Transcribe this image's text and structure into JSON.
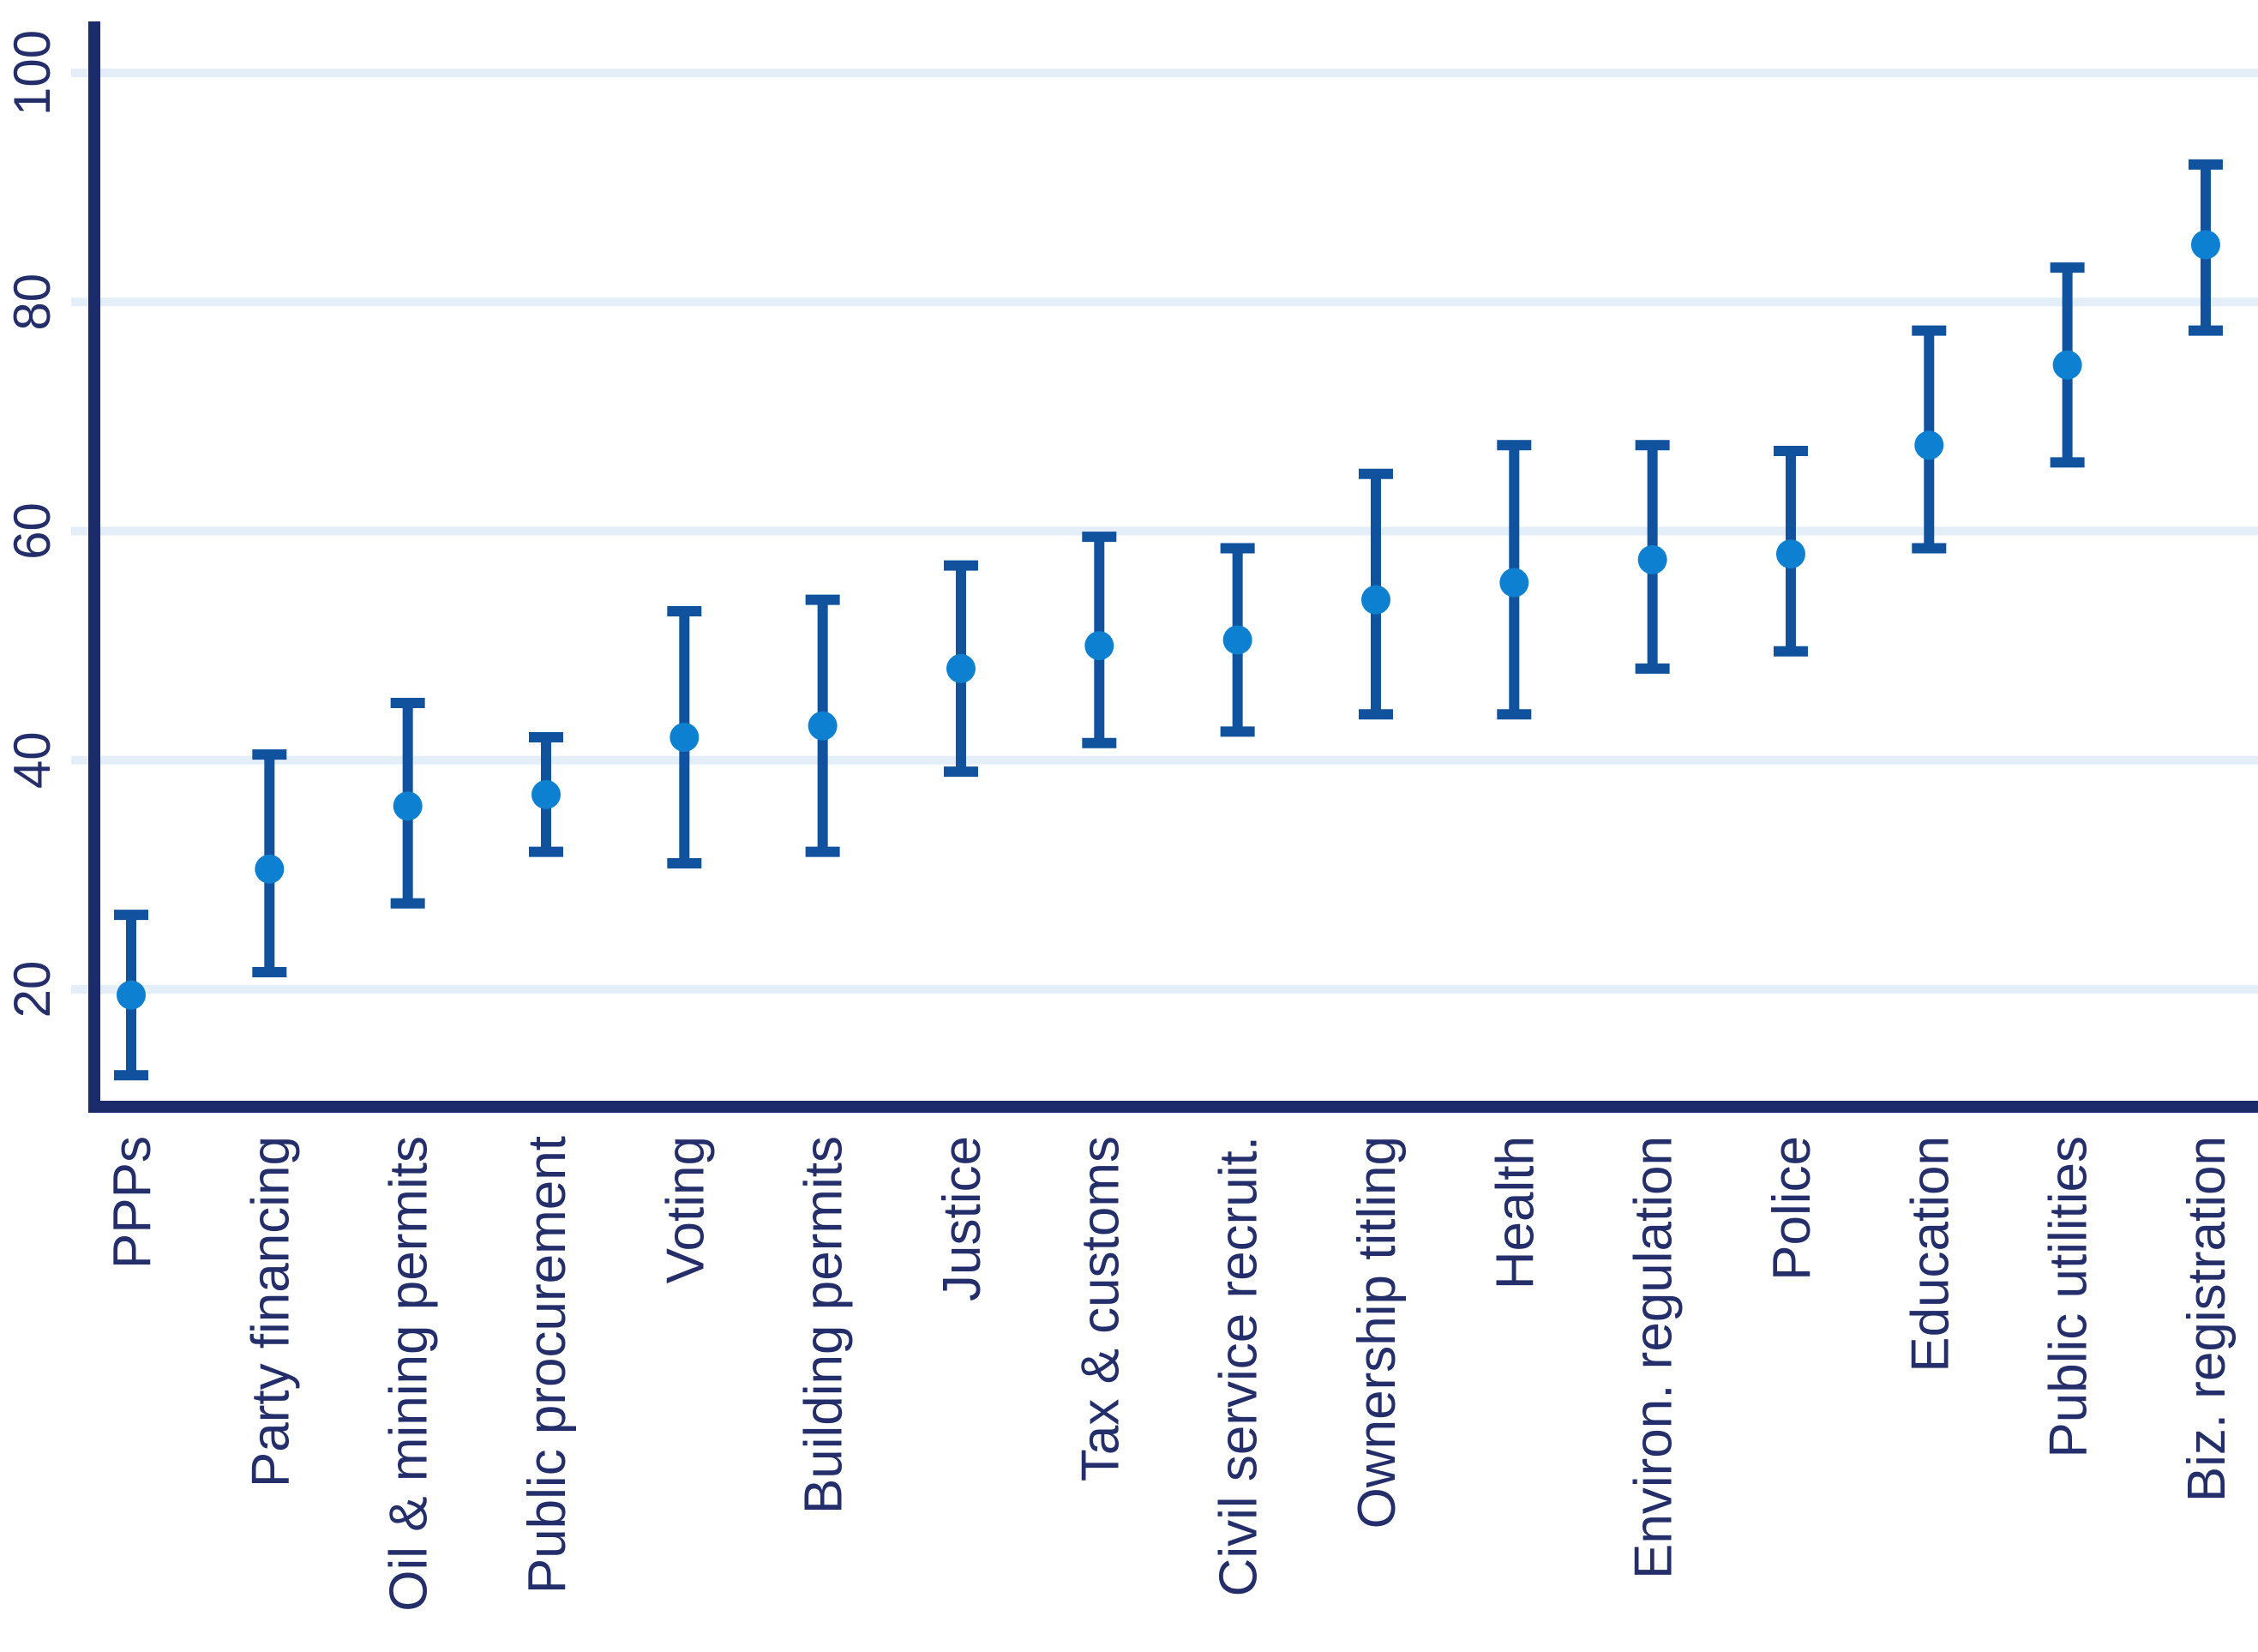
{
  "chart_data": {
    "type": "scatter",
    "subtype": "dot-with-error-bars",
    "title": "",
    "xlabel": "",
    "ylabel": "",
    "legend": null,
    "grid": true,
    "y_axis": {
      "ticks": [
        20,
        40,
        60,
        80,
        100
      ],
      "range_shown": [
        10,
        104
      ],
      "tick_label_rotation_deg": 90
    },
    "x_axis": {
      "tick_label_rotation_deg": 90
    },
    "categories": [
      "PPPs",
      "Party financing",
      "Oil & mining permits",
      "Public procurement",
      "Voting",
      "Building permits",
      "Justice",
      "Tax & customs",
      "Civil service recruit.",
      "Ownership titling",
      "Health",
      "Environ. regulation",
      "Police",
      "Education",
      "Public utilities",
      "Biz. registration"
    ],
    "series": [
      {
        "name": "point-estimate",
        "values": [
          19.5,
          30.5,
          36,
          37,
          42,
          43,
          48,
          50,
          50.5,
          54,
          55.5,
          57.5,
          58,
          67.5,
          74.5,
          85
        ]
      },
      {
        "name": "ci-lower",
        "values": [
          12.5,
          21.5,
          27.5,
          32,
          31,
          32,
          39,
          41.5,
          42.5,
          44,
          44,
          48,
          49.5,
          58.5,
          66,
          77.5
        ]
      },
      {
        "name": "ci-upper",
        "values": [
          26.5,
          40.5,
          45,
          42,
          53,
          54,
          57,
          59.5,
          58.5,
          65,
          67.5,
          67.5,
          67,
          77.5,
          83,
          92
        ]
      }
    ],
    "colors": {
      "dot": "#0e80d2",
      "whisker": "#11529e",
      "axis": "#1b2b6b",
      "tick_label": "#232e6a",
      "gridline": "#e4eef9",
      "background": "#ffffff"
    }
  }
}
